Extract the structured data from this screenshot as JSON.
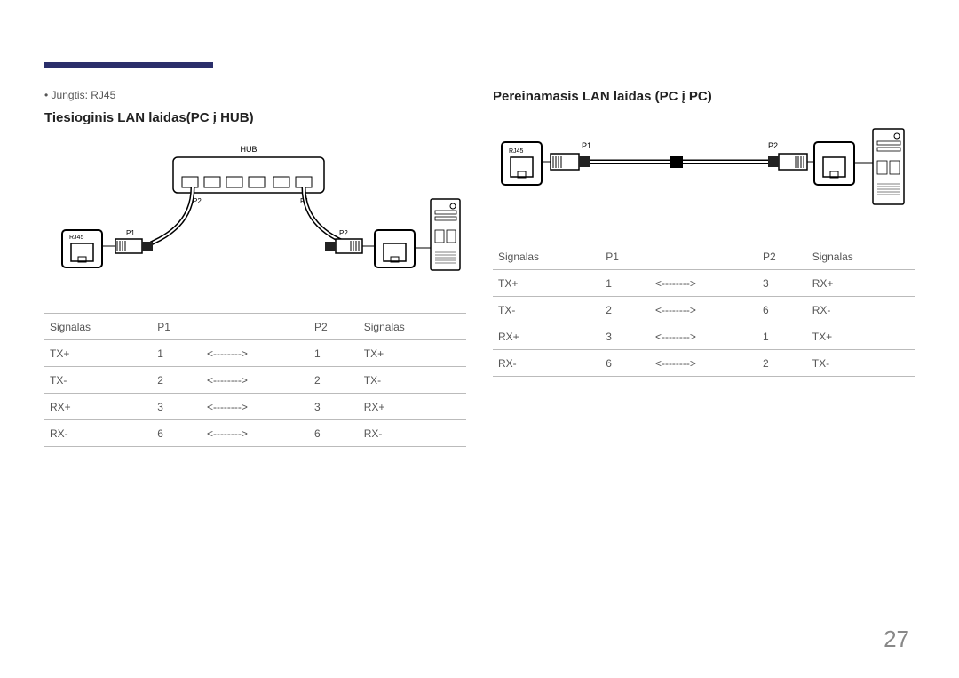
{
  "page_number": "27",
  "accent_color": "#2b2f6b",
  "left": {
    "bullet": "Jungtis: RJ45",
    "title": "Tiesioginis LAN laidas(PC į HUB)",
    "diagram": {
      "hub_label": "HUB",
      "hub_port_left": "P2",
      "hub_port_right": "P1",
      "rj45_label": "RJ45",
      "conn_left": "P1",
      "conn_right": "P2"
    },
    "table": {
      "headers": [
        "Signalas",
        "P1",
        "",
        "P2",
        "Signalas"
      ],
      "arrow": "<-------->",
      "rows": [
        [
          "TX+",
          "1",
          "<-------->",
          "1",
          "TX+"
        ],
        [
          "TX-",
          "2",
          "<-------->",
          "2",
          "TX-"
        ],
        [
          "RX+",
          "3",
          "<-------->",
          "3",
          "RX+"
        ],
        [
          "RX-",
          "6",
          "<-------->",
          "6",
          "RX-"
        ]
      ]
    }
  },
  "right": {
    "title": "Pereinamasis LAN laidas (PC į PC)",
    "diagram": {
      "rj45_label": "RJ45",
      "conn_left": "P1",
      "conn_right": "P2"
    },
    "table": {
      "headers": [
        "Signalas",
        "P1",
        "",
        "P2",
        "Signalas"
      ],
      "arrow": "<-------->",
      "rows": [
        [
          "TX+",
          "1",
          "<-------->",
          "3",
          "RX+"
        ],
        [
          "TX-",
          "2",
          "<-------->",
          "6",
          "RX-"
        ],
        [
          "RX+",
          "3",
          "<-------->",
          "1",
          "TX+"
        ],
        [
          "RX-",
          "6",
          "<-------->",
          "2",
          "TX-"
        ]
      ]
    }
  }
}
